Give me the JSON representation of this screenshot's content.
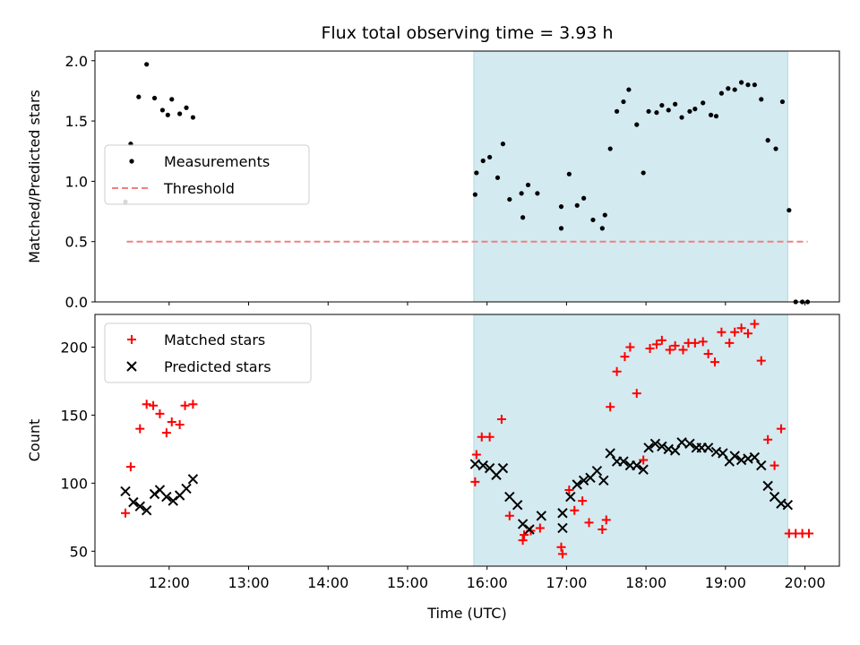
{
  "chart_data": [
    {
      "type": "scatter",
      "title": "Flux total observing time = 3.93 h",
      "ylabel": "Matched/Predicted stars",
      "xlabel": "",
      "xlim": [
        "11:04",
        "20:26"
      ],
      "ylim": [
        0,
        2.08
      ],
      "yticks": [
        0.0,
        0.5,
        1.0,
        1.5,
        2.0
      ],
      "ytick_labels": [
        "0.0",
        "0.5",
        "1.0",
        "1.5",
        "2.0"
      ],
      "highlight_span": {
        "from": "15:50",
        "to": "19:47",
        "color": "#d3eaf0"
      },
      "legend_position": "center-left",
      "series": [
        {
          "name": "Measurements",
          "marker": "dot",
          "color": "#000000",
          "points": [
            [
              "11:27",
              0.83
            ],
            [
              "11:31",
              1.31
            ],
            [
              "11:37",
              1.7
            ],
            [
              "11:43",
              1.97
            ],
            [
              "11:49",
              1.69
            ],
            [
              "11:55",
              1.59
            ],
            [
              "11:59",
              1.55
            ],
            [
              "12:02",
              1.68
            ],
            [
              "12:08",
              1.56
            ],
            [
              "12:13",
              1.61
            ],
            [
              "12:18",
              1.53
            ],
            [
              "15:51",
              0.89
            ],
            [
              "15:52",
              1.07
            ],
            [
              "15:57",
              1.17
            ],
            [
              "16:02",
              1.2
            ],
            [
              "16:08",
              1.03
            ],
            [
              "16:12",
              1.31
            ],
            [
              "16:17",
              0.85
            ],
            [
              "16:26",
              0.9
            ],
            [
              "16:27",
              0.7
            ],
            [
              "16:31",
              0.97
            ],
            [
              "16:38",
              0.9
            ],
            [
              "16:56",
              0.79
            ],
            [
              "16:56",
              0.61
            ],
            [
              "17:02",
              1.06
            ],
            [
              "17:08",
              0.8
            ],
            [
              "17:13",
              0.86
            ],
            [
              "17:20",
              0.68
            ],
            [
              "17:27",
              0.61
            ],
            [
              "17:29",
              0.72
            ],
            [
              "17:33",
              1.27
            ],
            [
              "17:38",
              1.58
            ],
            [
              "17:43",
              1.66
            ],
            [
              "17:47",
              1.76
            ],
            [
              "17:53",
              1.47
            ],
            [
              "17:58",
              1.07
            ],
            [
              "18:02",
              1.58
            ],
            [
              "18:08",
              1.57
            ],
            [
              "18:12",
              1.63
            ],
            [
              "18:17",
              1.59
            ],
            [
              "18:22",
              1.64
            ],
            [
              "18:27",
              1.53
            ],
            [
              "18:33",
              1.58
            ],
            [
              "18:37",
              1.6
            ],
            [
              "18:43",
              1.65
            ],
            [
              "18:49",
              1.55
            ],
            [
              "18:53",
              1.54
            ],
            [
              "18:57",
              1.73
            ],
            [
              "19:02",
              1.77
            ],
            [
              "19:07",
              1.76
            ],
            [
              "19:12",
              1.82
            ],
            [
              "19:17",
              1.8
            ],
            [
              "19:22",
              1.8
            ],
            [
              "19:27",
              1.68
            ],
            [
              "19:32",
              1.34
            ],
            [
              "19:38",
              1.27
            ],
            [
              "19:43",
              1.66
            ],
            [
              "19:48",
              0.76
            ],
            [
              "19:53",
              0.0
            ],
            [
              "19:58",
              0.0
            ],
            [
              "20:02",
              0.0
            ]
          ]
        },
        {
          "name": "Threshold",
          "marker": "dashed-line",
          "color": "#f08080",
          "points": [
            [
              "11:28",
              0.5
            ],
            [
              "20:02",
              0.5
            ]
          ]
        }
      ]
    },
    {
      "type": "scatter",
      "title": "",
      "ylabel": "Count",
      "xlabel": "Time (UTC)",
      "xlim": [
        "11:04",
        "20:26"
      ],
      "ylim": [
        39,
        224
      ],
      "yticks": [
        50,
        100,
        150,
        200
      ],
      "ytick_labels": [
        "50",
        "100",
        "150",
        "200"
      ],
      "xticks": [
        "12:00",
        "13:00",
        "14:00",
        "15:00",
        "16:00",
        "17:00",
        "18:00",
        "19:00",
        "20:00"
      ],
      "xtick_labels": [
        "12:00",
        "13:00",
        "14:00",
        "15:00",
        "16:00",
        "17:00",
        "18:00",
        "19:00",
        "20:00"
      ],
      "highlight_span": {
        "from": "15:50",
        "to": "19:47",
        "color": "#d3eaf0"
      },
      "legend_position": "top-left",
      "series": [
        {
          "name": "Matched stars",
          "marker": "plus",
          "color": "#ff0000",
          "points": [
            [
              "11:27",
              78
            ],
            [
              "11:31",
              112
            ],
            [
              "11:38",
              140
            ],
            [
              "11:43",
              158
            ],
            [
              "11:48",
              157
            ],
            [
              "11:53",
              151
            ],
            [
              "11:58",
              137
            ],
            [
              "12:02",
              145
            ],
            [
              "12:08",
              143
            ],
            [
              "12:12",
              157
            ],
            [
              "12:18",
              158
            ],
            [
              "15:51",
              101
            ],
            [
              "15:52",
              121
            ],
            [
              "15:56",
              134
            ],
            [
              "16:02",
              134
            ],
            [
              "16:11",
              147
            ],
            [
              "16:17",
              76
            ],
            [
              "16:27",
              58
            ],
            [
              "16:28",
              62
            ],
            [
              "16:33",
              65
            ],
            [
              "16:40",
              67
            ],
            [
              "16:56",
              53
            ],
            [
              "16:57",
              48
            ],
            [
              "17:02",
              95
            ],
            [
              "17:06",
              80
            ],
            [
              "17:12",
              87
            ],
            [
              "17:17",
              71
            ],
            [
              "17:27",
              66
            ],
            [
              "17:30",
              73
            ],
            [
              "17:33",
              156
            ],
            [
              "17:38",
              182
            ],
            [
              "17:44",
              193
            ],
            [
              "17:48",
              200
            ],
            [
              "17:53",
              166
            ],
            [
              "17:58",
              117
            ],
            [
              "18:03",
              199
            ],
            [
              "18:08",
              202
            ],
            [
              "18:12",
              205
            ],
            [
              "18:18",
              198
            ],
            [
              "18:22",
              201
            ],
            [
              "18:28",
              198
            ],
            [
              "18:32",
              203
            ],
            [
              "18:37",
              203
            ],
            [
              "18:43",
              204
            ],
            [
              "18:47",
              195
            ],
            [
              "18:52",
              189
            ],
            [
              "18:57",
              211
            ],
            [
              "19:03",
              203
            ],
            [
              "19:07",
              211
            ],
            [
              "19:12",
              214
            ],
            [
              "19:17",
              210
            ],
            [
              "19:22",
              217
            ],
            [
              "19:27",
              190
            ],
            [
              "19:32",
              132
            ],
            [
              "19:37",
              113
            ],
            [
              "19:42",
              140
            ],
            [
              "19:48",
              63
            ],
            [
              "19:53",
              63
            ],
            [
              "19:58",
              63
            ],
            [
              "20:03",
              63
            ]
          ]
        },
        {
          "name": "Predicted stars",
          "marker": "x",
          "color": "#000000",
          "points": [
            [
              "11:27",
              94
            ],
            [
              "11:33",
              86
            ],
            [
              "11:38",
              83
            ],
            [
              "11:43",
              80
            ],
            [
              "11:49",
              92
            ],
            [
              "11:53",
              95
            ],
            [
              "11:58",
              90
            ],
            [
              "12:03",
              87
            ],
            [
              "12:08",
              91
            ],
            [
              "12:13",
              96
            ],
            [
              "12:18",
              103
            ],
            [
              "15:51",
              114
            ],
            [
              "15:57",
              113
            ],
            [
              "16:02",
              111
            ],
            [
              "16:07",
              106
            ],
            [
              "16:12",
              111
            ],
            [
              "16:17",
              90
            ],
            [
              "16:23",
              84
            ],
            [
              "16:27",
              70
            ],
            [
              "16:32",
              66
            ],
            [
              "16:41",
              76
            ],
            [
              "16:57",
              67
            ],
            [
              "16:57",
              78
            ],
            [
              "17:03",
              90
            ],
            [
              "17:08",
              99
            ],
            [
              "17:13",
              102
            ],
            [
              "17:18",
              104
            ],
            [
              "17:23",
              109
            ],
            [
              "17:28",
              102
            ],
            [
              "17:33",
              122
            ],
            [
              "17:38",
              116
            ],
            [
              "17:43",
              116
            ],
            [
              "17:48",
              113
            ],
            [
              "17:53",
              113
            ],
            [
              "17:58",
              110
            ],
            [
              "18:02",
              126
            ],
            [
              "18:07",
              129
            ],
            [
              "18:12",
              127
            ],
            [
              "18:17",
              125
            ],
            [
              "18:22",
              124
            ],
            [
              "18:27",
              130
            ],
            [
              "18:33",
              129
            ],
            [
              "18:38",
              126
            ],
            [
              "18:42",
              126
            ],
            [
              "18:47",
              126
            ],
            [
              "18:53",
              123
            ],
            [
              "18:58",
              122
            ],
            [
              "19:03",
              116
            ],
            [
              "19:07",
              120
            ],
            [
              "19:12",
              117
            ],
            [
              "19:17",
              118
            ],
            [
              "19:22",
              119
            ],
            [
              "19:27",
              113
            ],
            [
              "19:32",
              98
            ],
            [
              "19:37",
              90
            ],
            [
              "19:42",
              85
            ],
            [
              "19:47",
              84
            ]
          ]
        }
      ]
    }
  ]
}
